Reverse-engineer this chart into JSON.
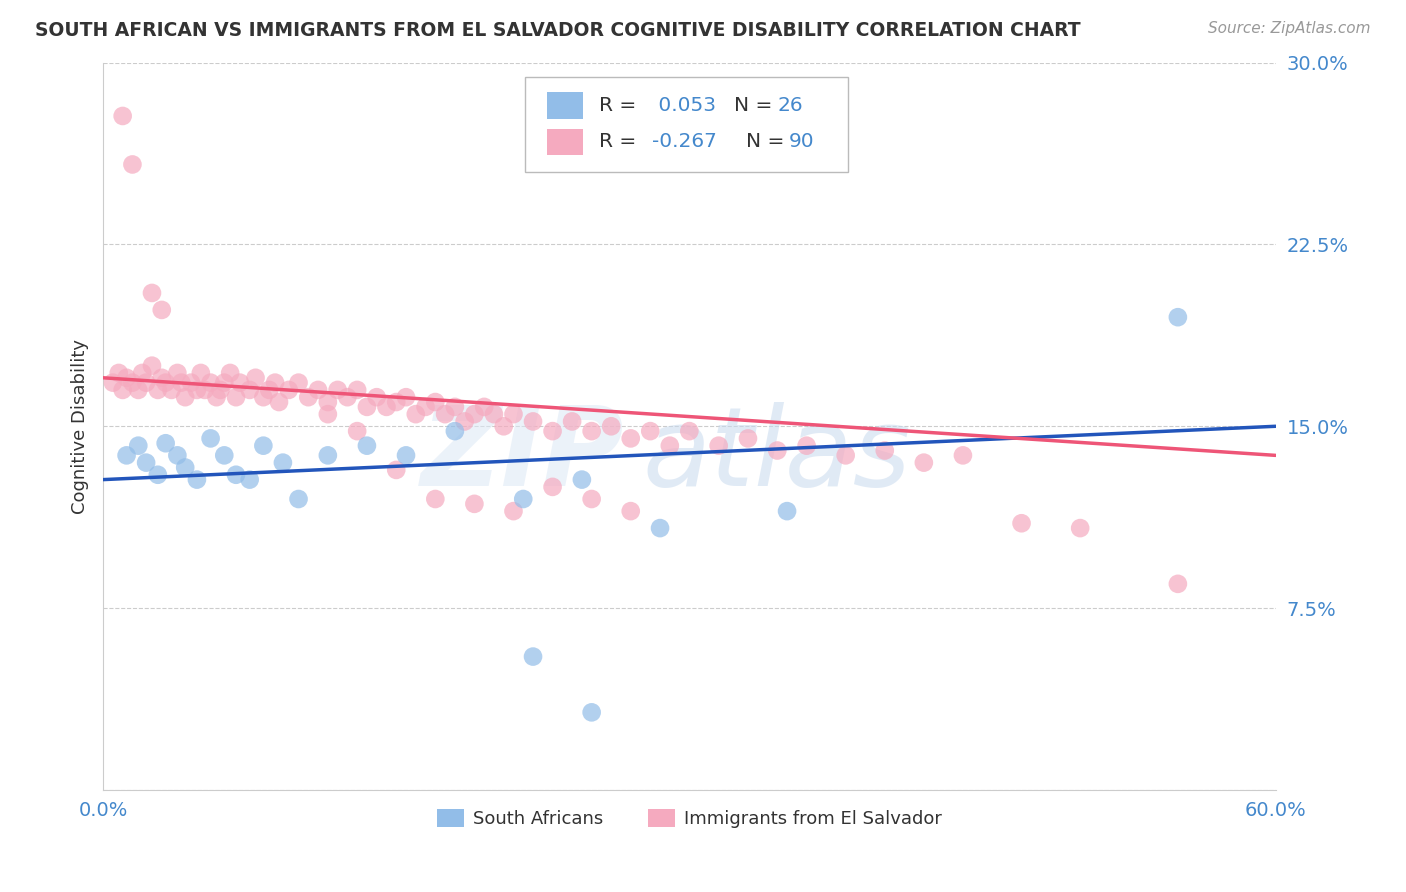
{
  "title": "SOUTH AFRICAN VS IMMIGRANTS FROM EL SALVADOR COGNITIVE DISABILITY CORRELATION CHART",
  "source": "Source: ZipAtlas.com",
  "ylabel": "Cognitive Disability",
  "xlim": [
    0.0,
    0.6
  ],
  "ylim": [
    0.0,
    0.3
  ],
  "xtick_positions": [
    0.0,
    0.1,
    0.2,
    0.3,
    0.4,
    0.5,
    0.6
  ],
  "xticklabels": [
    "0.0%",
    "",
    "",
    "",
    "",
    "",
    "60.0%"
  ],
  "ytick_positions": [
    0.0,
    0.075,
    0.15,
    0.225,
    0.3
  ],
  "yticklabels": [
    "",
    "7.5%",
    "15.0%",
    "22.5%",
    "30.0%"
  ],
  "legend_r1": "0.053",
  "legend_n1": "26",
  "legend_r2": "-0.267",
  "legend_n2": "90",
  "blue_scatter_color": "#92BDE8",
  "pink_scatter_color": "#F5AABF",
  "blue_line_color": "#2255BB",
  "pink_line_color": "#EE5577",
  "label_color": "#4488CC",
  "text_color": "#333333",
  "grid_color": "#CCCCCC",
  "background": "#FFFFFF",
  "legend1_label": "South Africans",
  "legend2_label": "Immigrants from El Salvador",
  "blue_line_start_y": 0.128,
  "blue_line_end_y": 0.15,
  "pink_line_start_y": 0.17,
  "pink_line_end_y": 0.138,
  "sa_x": [
    0.012,
    0.018,
    0.022,
    0.028,
    0.032,
    0.038,
    0.042,
    0.048,
    0.055,
    0.062,
    0.068,
    0.075,
    0.082,
    0.092,
    0.1,
    0.115,
    0.135,
    0.155,
    0.18,
    0.215,
    0.245,
    0.285,
    0.35,
    0.55,
    0.22,
    0.25
  ],
  "sa_y": [
    0.138,
    0.142,
    0.135,
    0.13,
    0.143,
    0.138,
    0.133,
    0.128,
    0.145,
    0.138,
    0.13,
    0.128,
    0.142,
    0.135,
    0.12,
    0.138,
    0.142,
    0.138,
    0.148,
    0.12,
    0.128,
    0.108,
    0.115,
    0.195,
    0.055,
    0.032
  ],
  "el_x": [
    0.005,
    0.008,
    0.01,
    0.012,
    0.015,
    0.018,
    0.02,
    0.022,
    0.025,
    0.028,
    0.03,
    0.032,
    0.035,
    0.038,
    0.04,
    0.042,
    0.045,
    0.048,
    0.05,
    0.052,
    0.055,
    0.058,
    0.06,
    0.062,
    0.065,
    0.068,
    0.07,
    0.075,
    0.078,
    0.082,
    0.085,
    0.088,
    0.09,
    0.095,
    0.1,
    0.105,
    0.11,
    0.115,
    0.12,
    0.125,
    0.13,
    0.135,
    0.14,
    0.145,
    0.15,
    0.155,
    0.16,
    0.165,
    0.17,
    0.175,
    0.18,
    0.185,
    0.19,
    0.195,
    0.2,
    0.205,
    0.21,
    0.22,
    0.23,
    0.24,
    0.25,
    0.26,
    0.27,
    0.28,
    0.29,
    0.3,
    0.315,
    0.33,
    0.345,
    0.36,
    0.38,
    0.4,
    0.42,
    0.44,
    0.47,
    0.5,
    0.55,
    0.025,
    0.03,
    0.01,
    0.015,
    0.115,
    0.13,
    0.15,
    0.17,
    0.19,
    0.21,
    0.23,
    0.25,
    0.27
  ],
  "el_y": [
    0.168,
    0.172,
    0.165,
    0.17,
    0.168,
    0.165,
    0.172,
    0.168,
    0.175,
    0.165,
    0.17,
    0.168,
    0.165,
    0.172,
    0.168,
    0.162,
    0.168,
    0.165,
    0.172,
    0.165,
    0.168,
    0.162,
    0.165,
    0.168,
    0.172,
    0.162,
    0.168,
    0.165,
    0.17,
    0.162,
    0.165,
    0.168,
    0.16,
    0.165,
    0.168,
    0.162,
    0.165,
    0.16,
    0.165,
    0.162,
    0.165,
    0.158,
    0.162,
    0.158,
    0.16,
    0.162,
    0.155,
    0.158,
    0.16,
    0.155,
    0.158,
    0.152,
    0.155,
    0.158,
    0.155,
    0.15,
    0.155,
    0.152,
    0.148,
    0.152,
    0.148,
    0.15,
    0.145,
    0.148,
    0.142,
    0.148,
    0.142,
    0.145,
    0.14,
    0.142,
    0.138,
    0.14,
    0.135,
    0.138,
    0.11,
    0.108,
    0.085,
    0.205,
    0.198,
    0.278,
    0.258,
    0.155,
    0.148,
    0.132,
    0.12,
    0.118,
    0.115,
    0.125,
    0.12,
    0.115
  ]
}
